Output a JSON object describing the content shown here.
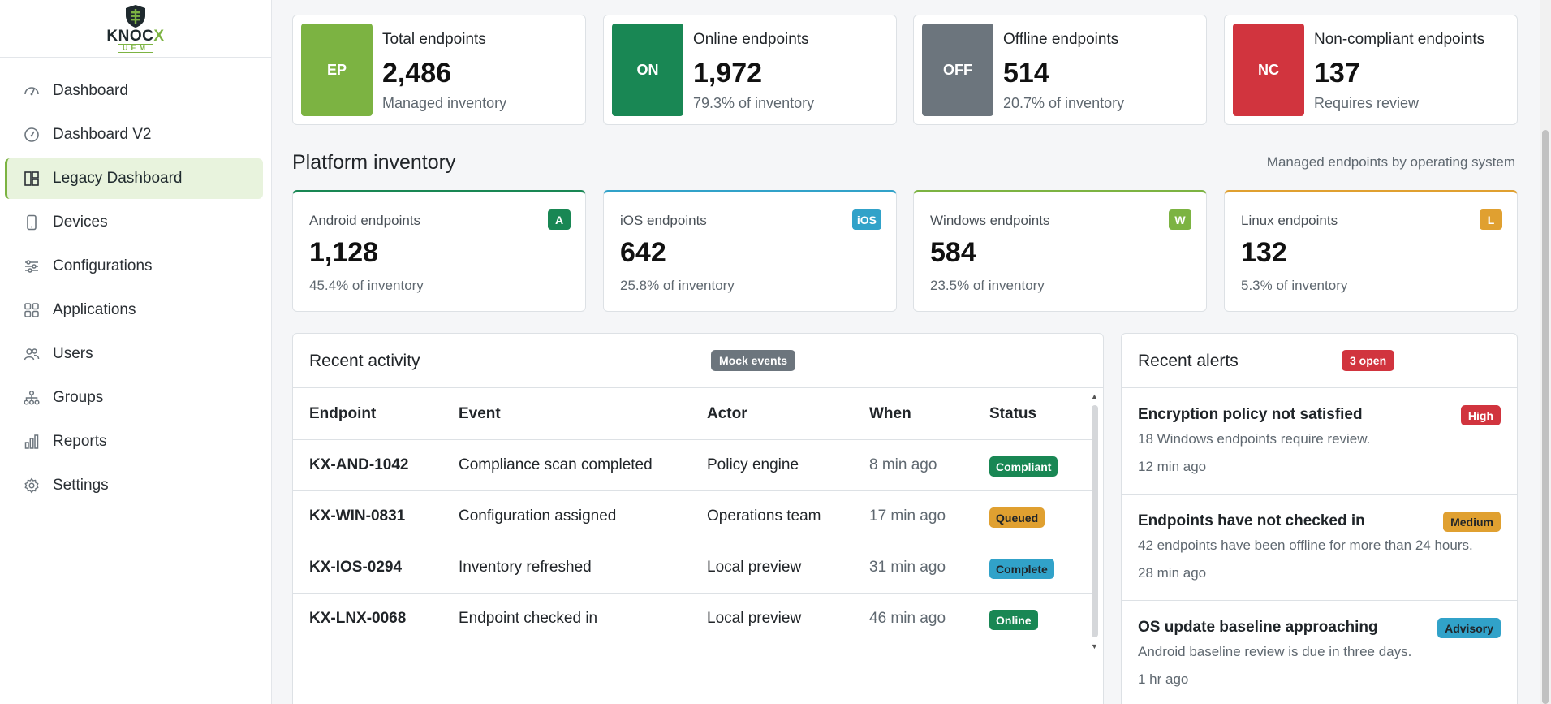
{
  "brand": {
    "name_prefix": "KNOC",
    "name_x": "X",
    "sub": "UEM"
  },
  "sidebar": {
    "items": [
      {
        "label": "Dashboard",
        "icon": "gauge-icon"
      },
      {
        "label": "Dashboard V2",
        "icon": "gauge-circle-icon"
      },
      {
        "label": "Legacy Dashboard",
        "icon": "layout-icon",
        "active": true
      },
      {
        "label": "Devices",
        "icon": "phone-icon"
      },
      {
        "label": "Configurations",
        "icon": "sliders-icon"
      },
      {
        "label": "Applications",
        "icon": "grid-icon"
      },
      {
        "label": "Users",
        "icon": "users-icon"
      },
      {
        "label": "Groups",
        "icon": "hierarchy-icon"
      },
      {
        "label": "Reports",
        "icon": "bar-chart-icon"
      },
      {
        "label": "Settings",
        "icon": "gear-icon"
      }
    ]
  },
  "stats": [
    {
      "badge": "EP",
      "label": "Total endpoints",
      "value": "2,486",
      "sub": "Managed inventory",
      "color": "#7cb342"
    },
    {
      "badge": "ON",
      "label": "Online endpoints",
      "value": "1,972",
      "sub": "79.3% of inventory",
      "color": "#198754"
    },
    {
      "badge": "OFF",
      "label": "Offline endpoints",
      "value": "514",
      "sub": "20.7% of inventory",
      "color": "#6c757d"
    },
    {
      "badge": "NC",
      "label": "Non-compliant endpoints",
      "value": "137",
      "sub": "Requires review",
      "color": "#d1343e"
    }
  ],
  "platform": {
    "title": "Platform inventory",
    "note": "Managed endpoints by operating system",
    "cards": [
      {
        "label": "Android endpoints",
        "tag": "A",
        "value": "1,128",
        "sub": "45.4% of inventory",
        "color": "#198754"
      },
      {
        "label": "iOS endpoints",
        "tag": "iOS",
        "value": "642",
        "sub": "25.8% of inventory",
        "color": "#31a2c9"
      },
      {
        "label": "Windows endpoints",
        "tag": "W",
        "value": "584",
        "sub": "23.5% of inventory",
        "color": "#7cb342"
      },
      {
        "label": "Linux endpoints",
        "tag": "L",
        "value": "132",
        "sub": "5.3% of inventory",
        "color": "#e0a030"
      }
    ]
  },
  "activity": {
    "title": "Recent activity",
    "pill": "Mock events",
    "headers": {
      "endpoint": "Endpoint",
      "event": "Event",
      "actor": "Actor",
      "when": "When",
      "status": "Status"
    },
    "rows": [
      {
        "endpoint": "KX-AND-1042",
        "event": "Compliance scan completed",
        "actor": "Policy engine",
        "when": "8 min ago",
        "status": "Compliant",
        "color": "#198754"
      },
      {
        "endpoint": "KX-WIN-0831",
        "event": "Configuration assigned",
        "actor": "Operations team",
        "when": "17 min ago",
        "status": "Queued",
        "color": "#e0a030"
      },
      {
        "endpoint": "KX-IOS-0294",
        "event": "Inventory refreshed",
        "actor": "Local preview",
        "when": "31 min ago",
        "status": "Complete",
        "color": "#31a2c9"
      },
      {
        "endpoint": "KX-LNX-0068",
        "event": "Endpoint checked in",
        "actor": "Local preview",
        "when": "46 min ago",
        "status": "Online",
        "color": "#198754"
      }
    ]
  },
  "alerts": {
    "title": "Recent alerts",
    "pill": "3 open",
    "items": [
      {
        "title": "Encryption policy not satisfied",
        "desc": "18 Windows endpoints require review.",
        "time": "12 min ago",
        "severity": "High",
        "color": "#d1343e"
      },
      {
        "title": "Endpoints have not checked in",
        "desc": "42 endpoints have been offline for more than 24 hours.",
        "time": "28 min ago",
        "severity": "Medium",
        "color": "#e0a030"
      },
      {
        "title": "OS update baseline approaching",
        "desc": "Android baseline review is due in three days.",
        "time": "1 hr ago",
        "severity": "Advisory",
        "color": "#31a2c9"
      }
    ]
  }
}
